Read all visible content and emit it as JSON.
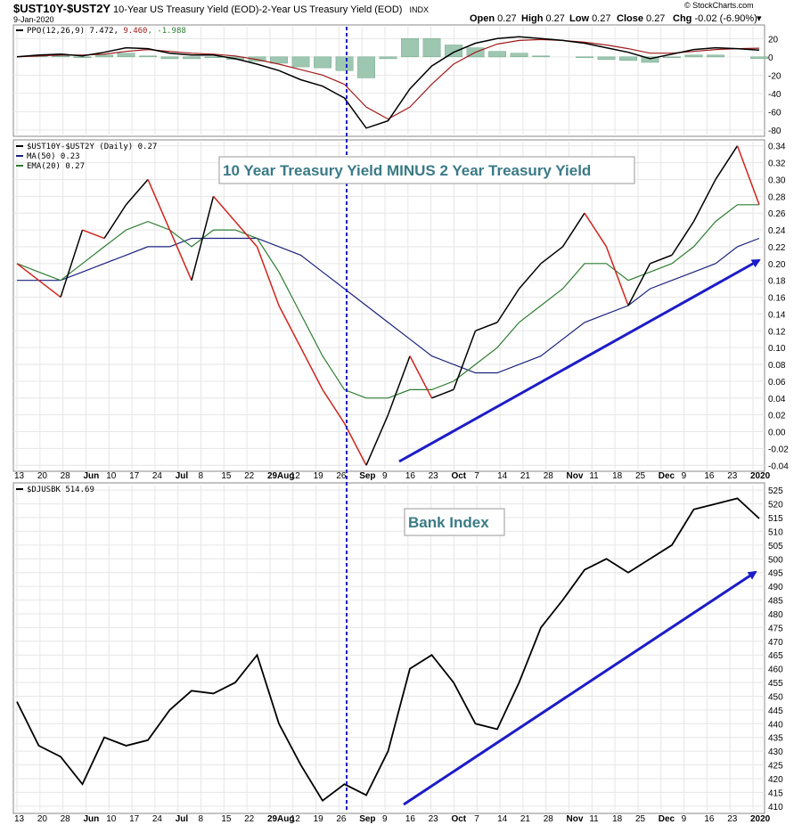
{
  "header": {
    "symbol": "$UST10Y-$UST2Y",
    "description": "10-Year US Treasury Yield (EOD)-2-Year US Treasury Yield (EOD)",
    "exchange": "INDX",
    "date": "9-Jan-2020",
    "watermark": "© StockCharts.com",
    "ohlc": [
      {
        "label": "Open",
        "value": "0.27"
      },
      {
        "label": "High",
        "value": "0.27"
      },
      {
        "label": "Low",
        "value": "0.27"
      },
      {
        "label": "Close",
        "value": "0.27"
      },
      {
        "label": "Chg",
        "value": "-0.02 (-6.90%)"
      }
    ],
    "chg_marker": "▾"
  },
  "colors": {
    "ppo_line": "#000000",
    "ppo_signal": "#a01c1c",
    "ppo_hist_up": "#6fa68a",
    "ppo_hist_fill": "#9ec7b1",
    "price_up": "#000000",
    "price_down": "#d0241c",
    "ma50": "#1a237e",
    "ema20": "#2e7d32",
    "trend_arrow": "#1c1cc8",
    "divider": "#1c1cc8"
  },
  "panels": {
    "ppo": {
      "legend": "PPO(12,26,9) 7.472, 9.460, -1.988",
      "legend_parts": [
        "PPO(12,26,9) 7.472, ",
        "9.460",
        ", -1.988"
      ]
    },
    "spread": {
      "legend": "$UST10Y-$UST2Y (Daily) 0.27",
      "ma_legend": "MA(50) 0.23",
      "ema_legend": "EMA(20) 0.27",
      "callout": "10 Year Treasury Yield MINUS 2 Year Treasury Yield"
    },
    "bank": {
      "legend": "$DJUSBK 514.69",
      "callout": "Bank Index"
    }
  },
  "x_axis_labels": [
    {
      "text": "13",
      "bold": false
    },
    {
      "text": "20",
      "bold": false
    },
    {
      "text": "28",
      "bold": false
    },
    {
      "text": "Jun",
      "bold": true
    },
    {
      "text": "10",
      "bold": false
    },
    {
      "text": "17",
      "bold": false
    },
    {
      "text": "24",
      "bold": false
    },
    {
      "text": "Jul",
      "bold": true
    },
    {
      "text": "8",
      "bold": false
    },
    {
      "text": "15",
      "bold": false
    },
    {
      "text": "22",
      "bold": false
    },
    {
      "text": "29Aug",
      "bold": true
    },
    {
      "text": "12",
      "bold": false
    },
    {
      "text": "19",
      "bold": false
    },
    {
      "text": "26",
      "bold": false
    },
    {
      "text": "Sep",
      "bold": true
    },
    {
      "text": "9",
      "bold": false
    },
    {
      "text": "16",
      "bold": false
    },
    {
      "text": "23",
      "bold": false
    },
    {
      "text": "Oct",
      "bold": true
    },
    {
      "text": "7",
      "bold": false
    },
    {
      "text": "14",
      "bold": false
    },
    {
      "text": "21",
      "bold": false
    },
    {
      "text": "28",
      "bold": false
    },
    {
      "text": "Nov",
      "bold": true
    },
    {
      "text": "11",
      "bold": false
    },
    {
      "text": "18",
      "bold": false
    },
    {
      "text": "25",
      "bold": false
    },
    {
      "text": "Dec",
      "bold": true
    },
    {
      "text": "9",
      "bold": false
    },
    {
      "text": "16",
      "bold": false
    },
    {
      "text": "23",
      "bold": false
    },
    {
      "text": "2020",
      "bold": true
    }
  ],
  "chart_data": [
    {
      "type": "line",
      "name": "PPO(12,26,9)",
      "ylim": [
        -85,
        33
      ],
      "yticks": [
        20,
        0,
        -20,
        -40,
        -60,
        -80
      ],
      "x": [
        "May 13",
        "May 20",
        "May 28",
        "Jun 3",
        "Jun 10",
        "Jun 17",
        "Jun 24",
        "Jul 1",
        "Jul 8",
        "Jul 15",
        "Jul 22",
        "Jul 29",
        "Aug 5",
        "Aug 12",
        "Aug 19",
        "Aug 26",
        "Sep 3",
        "Sep 9",
        "Sep 16",
        "Sep 23",
        "Sep 30",
        "Oct 7",
        "Oct 14",
        "Oct 21",
        "Oct 28",
        "Nov 4",
        "Nov 11",
        "Nov 18",
        "Nov 25",
        "Dec 2",
        "Dec 9",
        "Dec 16",
        "Dec 23",
        "Dec 30",
        "Jan 9"
      ],
      "series": [
        {
          "name": "PPO",
          "values": [
            0,
            2,
            3,
            1,
            5,
            10,
            9,
            4,
            2,
            2,
            -2,
            -8,
            -15,
            -25,
            -32,
            -45,
            -78,
            -70,
            -35,
            -10,
            5,
            15,
            20,
            22,
            20,
            18,
            15,
            10,
            5,
            -2,
            3,
            8,
            10,
            9,
            7.472
          ]
        },
        {
          "name": "Signal",
          "values": [
            0,
            1,
            2,
            2,
            3,
            6,
            8,
            6,
            4,
            3,
            1,
            -3,
            -8,
            -14,
            -20,
            -30,
            -55,
            -68,
            -55,
            -30,
            -8,
            5,
            14,
            18,
            19,
            18,
            16,
            13,
            9,
            4,
            4,
            6,
            8,
            9,
            9.46
          ]
        },
        {
          "name": "Histogram",
          "values": [
            0,
            1,
            1,
            -1,
            2,
            4,
            1,
            -2,
            -2,
            -1,
            -3,
            -5,
            -7,
            -11,
            -12,
            -15,
            -23,
            -2,
            20,
            20,
            13,
            10,
            6,
            4,
            1,
            0,
            -1,
            -3,
            -4,
            -6,
            -1,
            2,
            2,
            0,
            -1.988
          ]
        }
      ]
    },
    {
      "type": "line",
      "name": "$UST10Y-$UST2Y (Daily)",
      "ylim": [
        -0.045,
        0.345
      ],
      "yticks": [
        0.34,
        0.32,
        0.3,
        0.28,
        0.26,
        0.24,
        0.22,
        0.2,
        0.18,
        0.16,
        0.14,
        0.12,
        0.1,
        0.08,
        0.06,
        0.04,
        0.02,
        0.0,
        -0.02,
        -0.04
      ],
      "x": [
        "May 13",
        "May 20",
        "May 28",
        "Jun 3",
        "Jun 10",
        "Jun 17",
        "Jun 24",
        "Jul 1",
        "Jul 8",
        "Jul 15",
        "Jul 22",
        "Jul 29",
        "Aug 5",
        "Aug 12",
        "Aug 19",
        "Aug 26",
        "Sep 3",
        "Sep 9",
        "Sep 16",
        "Sep 23",
        "Sep 30",
        "Oct 7",
        "Oct 14",
        "Oct 21",
        "Oct 28",
        "Nov 4",
        "Nov 11",
        "Nov 18",
        "Nov 25",
        "Dec 2",
        "Dec 9",
        "Dec 16",
        "Dec 23",
        "Dec 30",
        "Jan 9"
      ],
      "series": [
        {
          "name": "$UST10Y-$UST2Y",
          "values": [
            0.2,
            0.18,
            0.16,
            0.24,
            0.23,
            0.27,
            0.3,
            0.24,
            0.18,
            0.28,
            0.25,
            0.22,
            0.15,
            0.1,
            0.05,
            0.01,
            -0.04,
            0.02,
            0.09,
            0.04,
            0.05,
            0.12,
            0.13,
            0.17,
            0.2,
            0.22,
            0.26,
            0.22,
            0.15,
            0.2,
            0.21,
            0.25,
            0.3,
            0.34,
            0.27
          ]
        },
        {
          "name": "MA(50)",
          "values": [
            0.18,
            0.18,
            0.18,
            0.19,
            0.2,
            0.21,
            0.22,
            0.22,
            0.23,
            0.23,
            0.23,
            0.23,
            0.22,
            0.21,
            0.19,
            0.17,
            0.15,
            0.13,
            0.11,
            0.09,
            0.08,
            0.07,
            0.07,
            0.08,
            0.09,
            0.11,
            0.13,
            0.14,
            0.15,
            0.17,
            0.18,
            0.19,
            0.2,
            0.22,
            0.23
          ]
        },
        {
          "name": "EMA(20)",
          "values": [
            0.2,
            0.19,
            0.18,
            0.2,
            0.22,
            0.24,
            0.25,
            0.24,
            0.22,
            0.24,
            0.24,
            0.23,
            0.19,
            0.14,
            0.09,
            0.05,
            0.04,
            0.04,
            0.05,
            0.05,
            0.06,
            0.08,
            0.1,
            0.13,
            0.15,
            0.17,
            0.2,
            0.2,
            0.18,
            0.19,
            0.2,
            0.22,
            0.25,
            0.27,
            0.27
          ]
        }
      ]
    },
    {
      "type": "line",
      "name": "$DJUSBK",
      "ylim": [
        408,
        527
      ],
      "yticks": [
        525,
        520,
        515,
        510,
        505,
        500,
        495,
        490,
        485,
        480,
        475,
        470,
        465,
        460,
        455,
        450,
        445,
        440,
        435,
        430,
        425,
        420,
        415,
        410
      ],
      "x": [
        "May 13",
        "May 20",
        "May 28",
        "Jun 3",
        "Jun 10",
        "Jun 17",
        "Jun 24",
        "Jul 1",
        "Jul 8",
        "Jul 15",
        "Jul 22",
        "Jul 29",
        "Aug 5",
        "Aug 12",
        "Aug 19",
        "Aug 26",
        "Sep 3",
        "Sep 9",
        "Sep 16",
        "Sep 23",
        "Sep 30",
        "Oct 7",
        "Oct 14",
        "Oct 21",
        "Oct 28",
        "Nov 4",
        "Nov 11",
        "Nov 18",
        "Nov 25",
        "Dec 2",
        "Dec 9",
        "Dec 16",
        "Dec 23",
        "Dec 30",
        "Jan 9"
      ],
      "series": [
        {
          "name": "$DJUSBK",
          "values": [
            448,
            432,
            428,
            418,
            435,
            432,
            434,
            445,
            452,
            451,
            455,
            465,
            440,
            425,
            412,
            418,
            414,
            430,
            460,
            465,
            455,
            440,
            438,
            455,
            475,
            485,
            496,
            500,
            495,
            500,
            505,
            518,
            520,
            522,
            514.69
          ]
        }
      ]
    }
  ]
}
